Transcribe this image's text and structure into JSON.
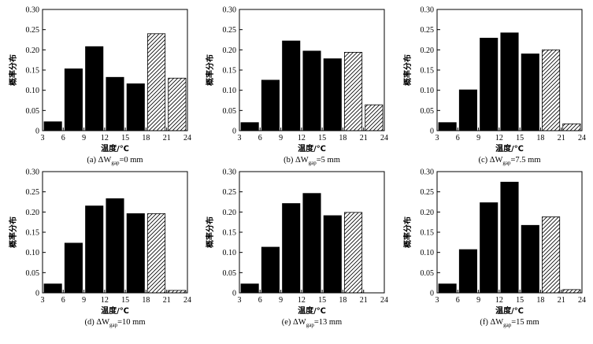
{
  "colors": {
    "bar": "#000000",
    "hatch": "#000000",
    "background": "#ffffff"
  },
  "chart_data": [
    {
      "type": "bar",
      "caption": {
        "prefix": "(a) ΔW",
        "subscript": "gap",
        "suffix": "=0 mm"
      },
      "xlabel": "温度/℃",
      "ylabel": "概率分布",
      "x_ticks": [
        "3",
        "6",
        "9",
        "12",
        "15",
        "18",
        "21",
        "24"
      ],
      "y_ticks": [
        "0",
        "0.05",
        "0.10",
        "0.15",
        "0.20",
        "0.25",
        "0.30"
      ],
      "xlim": [
        3,
        24
      ],
      "ylim": [
        0,
        0.3
      ],
      "grid": false,
      "bars": [
        {
          "start": 3,
          "end": 6,
          "value": 0.022,
          "style": "solid"
        },
        {
          "start": 6,
          "end": 9,
          "value": 0.153,
          "style": "solid"
        },
        {
          "start": 9,
          "end": 12,
          "value": 0.208,
          "style": "solid"
        },
        {
          "start": 12,
          "end": 15,
          "value": 0.132,
          "style": "solid"
        },
        {
          "start": 15,
          "end": 18,
          "value": 0.116,
          "style": "solid"
        },
        {
          "start": 18,
          "end": 21,
          "value": 0.24,
          "style": "hatched"
        },
        {
          "start": 21,
          "end": 24,
          "value": 0.13,
          "style": "hatched"
        }
      ]
    },
    {
      "type": "bar",
      "caption": {
        "prefix": "(b) ΔW",
        "subscript": "gap",
        "suffix": "=5 mm"
      },
      "xlabel": "温度/℃",
      "ylabel": "概率分布",
      "x_ticks": [
        "3",
        "6",
        "9",
        "12",
        "15",
        "18",
        "21",
        "24"
      ],
      "y_ticks": [
        "0",
        "0.05",
        "0.10",
        "0.15",
        "0.20",
        "0.25",
        "0.30"
      ],
      "xlim": [
        3,
        24
      ],
      "ylim": [
        0,
        0.3
      ],
      "grid": false,
      "bars": [
        {
          "start": 3,
          "end": 6,
          "value": 0.02,
          "style": "solid"
        },
        {
          "start": 6,
          "end": 9,
          "value": 0.125,
          "style": "solid"
        },
        {
          "start": 9,
          "end": 12,
          "value": 0.222,
          "style": "solid"
        },
        {
          "start": 12,
          "end": 15,
          "value": 0.197,
          "style": "solid"
        },
        {
          "start": 15,
          "end": 18,
          "value": 0.178,
          "style": "solid"
        },
        {
          "start": 18,
          "end": 21,
          "value": 0.194,
          "style": "hatched"
        },
        {
          "start": 21,
          "end": 24,
          "value": 0.064,
          "style": "hatched"
        }
      ]
    },
    {
      "type": "bar",
      "caption": {
        "prefix": "(c) ΔW",
        "subscript": "gap",
        "suffix": "=7.5 mm"
      },
      "xlabel": "温度/℃",
      "ylabel": "概率分布",
      "x_ticks": [
        "3",
        "6",
        "9",
        "12",
        "15",
        "18",
        "21",
        "24"
      ],
      "y_ticks": [
        "0",
        "0.05",
        "0.10",
        "0.15",
        "0.20",
        "0.25",
        "0.30"
      ],
      "xlim": [
        3,
        24
      ],
      "ylim": [
        0,
        0.3
      ],
      "grid": false,
      "bars": [
        {
          "start": 3,
          "end": 6,
          "value": 0.02,
          "style": "solid"
        },
        {
          "start": 6,
          "end": 9,
          "value": 0.101,
          "style": "solid"
        },
        {
          "start": 9,
          "end": 12,
          "value": 0.229,
          "style": "solid"
        },
        {
          "start": 12,
          "end": 15,
          "value": 0.242,
          "style": "solid"
        },
        {
          "start": 15,
          "end": 18,
          "value": 0.19,
          "style": "solid"
        },
        {
          "start": 18,
          "end": 21,
          "value": 0.2,
          "style": "hatched"
        },
        {
          "start": 21,
          "end": 24,
          "value": 0.017,
          "style": "hatched"
        }
      ]
    },
    {
      "type": "bar",
      "caption": {
        "prefix": "(d) ΔW",
        "subscript": "gap",
        "suffix": "=10 mm"
      },
      "xlabel": "温度/℃",
      "ylabel": "概率分布",
      "x_ticks": [
        "3",
        "6",
        "9",
        "12",
        "15",
        "18",
        "21",
        "24"
      ],
      "y_ticks": [
        "0",
        "0.05",
        "0.10",
        "0.15",
        "0.20",
        "0.25",
        "0.30"
      ],
      "xlim": [
        3,
        24
      ],
      "ylim": [
        0,
        0.3
      ],
      "grid": false,
      "bars": [
        {
          "start": 3,
          "end": 6,
          "value": 0.022,
          "style": "solid"
        },
        {
          "start": 6,
          "end": 9,
          "value": 0.123,
          "style": "solid"
        },
        {
          "start": 9,
          "end": 12,
          "value": 0.215,
          "style": "solid"
        },
        {
          "start": 12,
          "end": 15,
          "value": 0.233,
          "style": "solid"
        },
        {
          "start": 15,
          "end": 18,
          "value": 0.196,
          "style": "solid"
        },
        {
          "start": 18,
          "end": 21,
          "value": 0.196,
          "style": "hatched"
        },
        {
          "start": 21,
          "end": 24,
          "value": 0.006,
          "style": "hatched"
        }
      ]
    },
    {
      "type": "bar",
      "caption": {
        "prefix": "(e) ΔW",
        "subscript": "gap",
        "suffix": "=13 mm"
      },
      "xlabel": "温度/℃",
      "ylabel": "概率分布",
      "x_ticks": [
        "3",
        "6",
        "9",
        "12",
        "15",
        "18",
        "21",
        "24"
      ],
      "y_ticks": [
        "0",
        "0.05",
        "0.10",
        "0.15",
        "0.20",
        "0.25",
        "0.30"
      ],
      "xlim": [
        3,
        24
      ],
      "ylim": [
        0,
        0.3
      ],
      "grid": false,
      "bars": [
        {
          "start": 3,
          "end": 6,
          "value": 0.022,
          "style": "solid"
        },
        {
          "start": 6,
          "end": 9,
          "value": 0.113,
          "style": "solid"
        },
        {
          "start": 9,
          "end": 12,
          "value": 0.221,
          "style": "solid"
        },
        {
          "start": 12,
          "end": 15,
          "value": 0.246,
          "style": "solid"
        },
        {
          "start": 15,
          "end": 18,
          "value": 0.191,
          "style": "solid"
        },
        {
          "start": 18,
          "end": 21,
          "value": 0.199,
          "style": "hatched"
        }
      ]
    },
    {
      "type": "bar",
      "caption": {
        "prefix": "(f) ΔW",
        "subscript": "gap",
        "suffix": "=15 mm"
      },
      "xlabel": "温度/℃",
      "ylabel": "概率分布",
      "x_ticks": [
        "3",
        "6",
        "9",
        "12",
        "15",
        "18",
        "21",
        "24"
      ],
      "y_ticks": [
        "0",
        "0.05",
        "0.10",
        "0.15",
        "0.20",
        "0.25",
        "0.30"
      ],
      "xlim": [
        3,
        24
      ],
      "ylim": [
        0,
        0.3
      ],
      "grid": false,
      "bars": [
        {
          "start": 3,
          "end": 6,
          "value": 0.022,
          "style": "solid"
        },
        {
          "start": 6,
          "end": 9,
          "value": 0.107,
          "style": "solid"
        },
        {
          "start": 9,
          "end": 12,
          "value": 0.223,
          "style": "solid"
        },
        {
          "start": 12,
          "end": 15,
          "value": 0.274,
          "style": "solid"
        },
        {
          "start": 15,
          "end": 18,
          "value": 0.167,
          "style": "solid"
        },
        {
          "start": 18,
          "end": 21,
          "value": 0.188,
          "style": "hatched"
        },
        {
          "start": 21,
          "end": 24,
          "value": 0.008,
          "style": "hatched"
        }
      ]
    }
  ]
}
